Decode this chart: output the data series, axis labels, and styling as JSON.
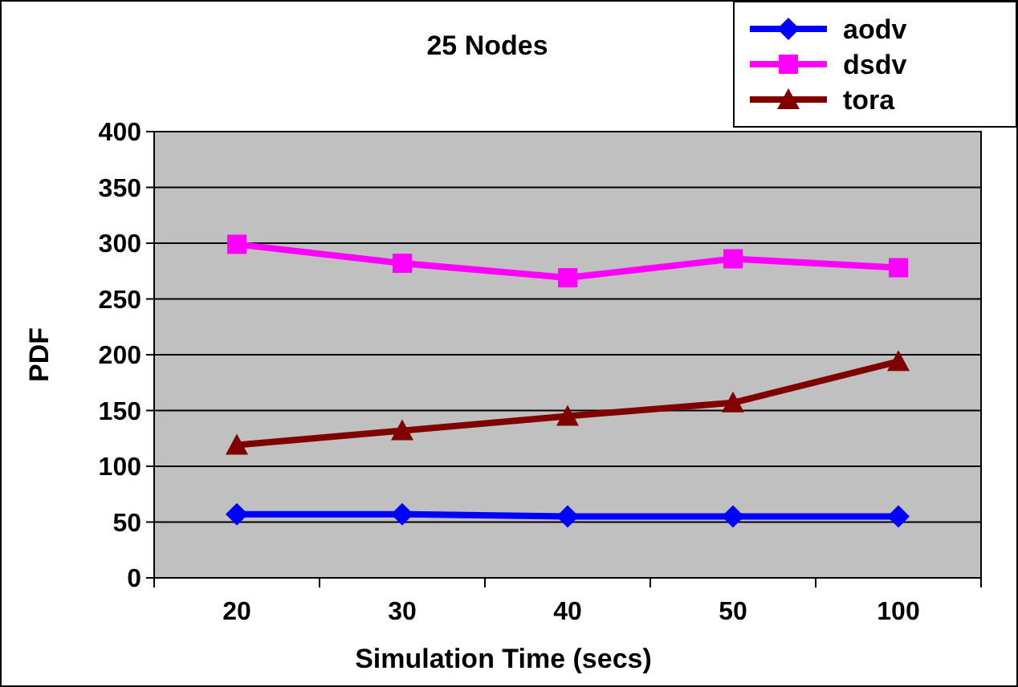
{
  "chart_data": {
    "type": "line",
    "title": "25 Nodes",
    "xlabel": "Simulation Time (secs)",
    "ylabel": "PDF",
    "categories": [
      "20",
      "30",
      "40",
      "50",
      "100"
    ],
    "series": [
      {
        "name": "aodv",
        "color": "#0000ff",
        "values": [
          57,
          57,
          55,
          55,
          55
        ],
        "marker": "diamond"
      },
      {
        "name": "dsdv",
        "color": "#ff00ff",
        "values": [
          299,
          282,
          269,
          286,
          278
        ],
        "marker": "square"
      },
      {
        "name": "tora",
        "color": "#800000",
        "values": [
          119,
          132,
          145,
          157,
          194
        ],
        "marker": "triangle"
      }
    ],
    "ylim": [
      0,
      400
    ],
    "yticks": [
      0,
      50,
      100,
      150,
      200,
      250,
      300,
      350,
      400
    ],
    "grid": "y",
    "legend": "top right",
    "line_style": "solid"
  }
}
